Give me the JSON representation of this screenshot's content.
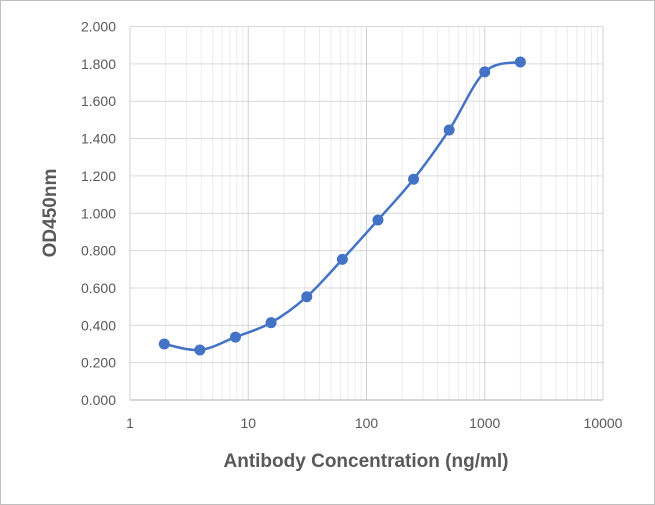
{
  "chart_data": {
    "type": "line",
    "title": "",
    "xlabel": "Antibody Concentration (ng/ml)",
    "ylabel": "OD450nm",
    "xscale": "log",
    "xlim": [
      1,
      10000
    ],
    "ylim": [
      0,
      2
    ],
    "x_ticks": [
      "1",
      "10",
      "100",
      "1000",
      "10000"
    ],
    "y_ticks": [
      "0.000",
      "0.200",
      "0.400",
      "0.600",
      "0.800",
      "1.000",
      "1.200",
      "1.400",
      "1.600",
      "1.800",
      "2.000"
    ],
    "grid": true,
    "minor_grid": true,
    "smooth": true,
    "series": [
      {
        "color": "#4472c4",
        "x": [
          1.95,
          3.9,
          7.8,
          15.6,
          31.25,
          62.5,
          125,
          250,
          500,
          1000,
          2000
        ],
        "y": [
          0.3,
          0.268,
          0.337,
          0.414,
          0.553,
          0.753,
          0.964,
          1.182,
          1.446,
          1.757,
          1.81
        ]
      }
    ]
  }
}
